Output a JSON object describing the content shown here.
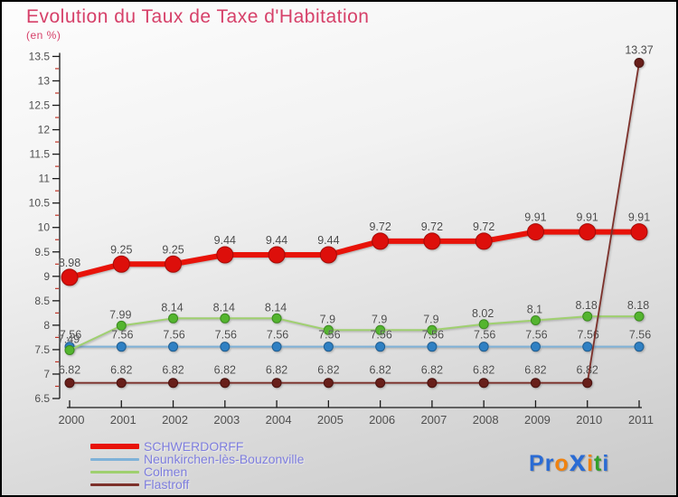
{
  "header": {
    "title_color": "#d64069"
  },
  "chart_data": {
    "type": "line",
    "title": "Evolution du Taux de Taxe d'Habitation",
    "subtitle": "(en %)",
    "x": [
      2000,
      2001,
      2002,
      2003,
      2004,
      2005,
      2006,
      2007,
      2008,
      2009,
      2010,
      2011
    ],
    "xlabel": "",
    "ylabel": "",
    "ylim": [
      6.5,
      13.5
    ],
    "ytick_major": 0.5,
    "ytick_minor": 0.25,
    "grid": false,
    "legend_position": "bottom-left",
    "axis_color": "#1a1a1a",
    "tick_label_color": "#4f4f4f",
    "minor_tick_color": "#c03326",
    "value_label_color": "#4a4a4a",
    "series": [
      {
        "name": "SCHWERDORFF",
        "line_color": "#e81309",
        "point_color": "#dd0f0b",
        "point_edge": "#a50b06",
        "line_width": 6,
        "point_radius": 9,
        "values": [
          8.98,
          9.25,
          9.25,
          9.44,
          9.44,
          9.44,
          9.72,
          9.72,
          9.72,
          9.91,
          9.91,
          9.91
        ]
      },
      {
        "name": "Neunkirchen-lès-Bouzonville",
        "line_color": "#7fb2d8",
        "point_color": "#2f80c3",
        "point_edge": "#205e91",
        "line_width": 2,
        "point_radius": 5,
        "values": [
          7.56,
          7.56,
          7.56,
          7.56,
          7.56,
          7.56,
          7.56,
          7.56,
          7.56,
          7.56,
          7.56,
          7.56
        ]
      },
      {
        "name": "Colmen",
        "line_color": "#9fd06f",
        "point_color": "#54b52f",
        "point_edge": "#3c8a20",
        "line_width": 2,
        "point_radius": 5,
        "values": [
          7.49,
          7.99,
          8.14,
          8.14,
          8.14,
          7.9,
          7.9,
          7.9,
          8.02,
          8.1,
          8.18,
          8.18
        ]
      },
      {
        "name": "Flastroff",
        "line_color": "#7d312b",
        "point_color": "#681f1a",
        "point_edge": "#4a1310",
        "line_width": 1.8,
        "point_radius": 5,
        "values": [
          6.82,
          6.82,
          6.82,
          6.82,
          6.82,
          6.82,
          6.82,
          6.82,
          6.82,
          6.82,
          6.82,
          13.37
        ]
      }
    ]
  },
  "legend": {
    "text_color": "#7e7ede"
  },
  "logo": {
    "letters": [
      {
        "ch": "P",
        "color": "#2a6bd4",
        "big": false
      },
      {
        "ch": "r",
        "color": "#2a6bd4",
        "big": false
      },
      {
        "ch": "o",
        "color": "#f0820f",
        "big": false
      },
      {
        "ch": "x",
        "color": "#2a6bd4",
        "big": true
      },
      {
        "ch": "i",
        "color": "#f0820f",
        "big": false
      },
      {
        "ch": "t",
        "color": "#33a02c",
        "big": false
      },
      {
        "ch": "i",
        "color": "#2a6bd4",
        "big": false
      }
    ]
  }
}
